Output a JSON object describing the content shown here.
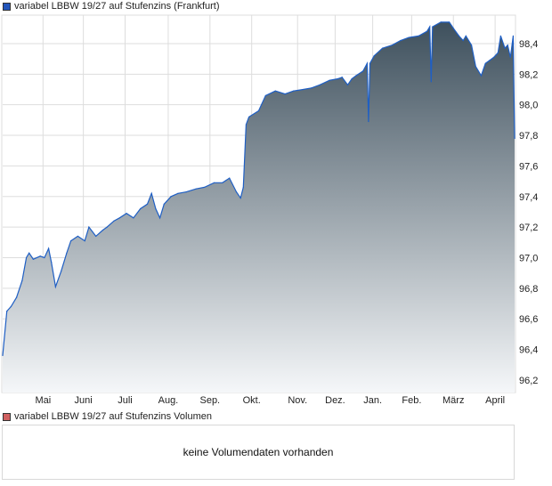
{
  "legend_price": "variabel LBBW 19/27 auf Stufenzins (Frankfurt)",
  "legend_volume": "variabel LBBW 19/27 auf Stufenzins Volumen",
  "volume_message": "keine Volumendaten vorhanden",
  "colors": {
    "line": "#1f5fc4",
    "fill_top": "#3e505d",
    "fill_bottom": "#f5f7f9",
    "grid": "#dddddd",
    "price_swatch": "#2255bb",
    "volume_swatch": "#d06060"
  },
  "chart_data": {
    "type": "area",
    "title": "variabel LBBW 19/27 auf Stufenzins (Frankfurt)",
    "xlabel": "",
    "ylabel": "",
    "xlim": [
      0,
      368
    ],
    "ylim": [
      96.118,
      98.586
    ],
    "grid": true,
    "legend": "top-left",
    "x_ticks": [
      {
        "day": 29,
        "label": "Mai"
      },
      {
        "day": 58,
        "label": "Juni"
      },
      {
        "day": 88,
        "label": "Juli"
      },
      {
        "day": 119,
        "label": "Aug."
      },
      {
        "day": 149,
        "label": "Sep."
      },
      {
        "day": 179,
        "label": "Okt."
      },
      {
        "day": 212,
        "label": "Nov."
      },
      {
        "day": 239,
        "label": "Dez."
      },
      {
        "day": 266,
        "label": "Jan."
      },
      {
        "day": 294,
        "label": "Feb."
      },
      {
        "day": 324,
        "label": "März"
      },
      {
        "day": 354,
        "label": "April"
      }
    ],
    "y_ticks": [
      {
        "value": 96.2,
        "label": "96,2"
      },
      {
        "value": 96.4,
        "label": "96,4"
      },
      {
        "value": 96.6,
        "label": "96,6"
      },
      {
        "value": 96.8,
        "label": "96,8"
      },
      {
        "value": 97.0,
        "label": "97,0"
      },
      {
        "value": 97.2,
        "label": "97,2"
      },
      {
        "value": 97.4,
        "label": "97,4"
      },
      {
        "value": 97.6,
        "label": "97,6"
      },
      {
        "value": 97.8,
        "label": "97,8"
      },
      {
        "value": 98.0,
        "label": "98,0"
      },
      {
        "value": 98.2,
        "label": "98,2"
      },
      {
        "value": 98.4,
        "label": "98,4"
      }
    ],
    "series": [
      {
        "name": "variabel LBBW 19/27 auf Stufenzins (Frankfurt)",
        "x": [
          0,
          3,
          6,
          10,
          14,
          17,
          19,
          22,
          27,
          30,
          33,
          35,
          38,
          42,
          46,
          49,
          54,
          59,
          62,
          67,
          72,
          75,
          80,
          84,
          89,
          94,
          99,
          104,
          107,
          110,
          113,
          116,
          121,
          126,
          132,
          139,
          145,
          152,
          158,
          163,
          168,
          171,
          173,
          175,
          177,
          184,
          189,
          196,
          203,
          209,
          216,
          222,
          228,
          235,
          241,
          244,
          248,
          251,
          254,
          259,
          262,
          263,
          264,
          267,
          273,
          280,
          286,
          292,
          299,
          305,
          307,
          308,
          309,
          315,
          321,
          324,
          328,
          331,
          333,
          337,
          340,
          344,
          347,
          350,
          353,
          356,
          358,
          361,
          363,
          365,
          367,
          368
        ],
        "values": [
          96.36,
          96.65,
          96.68,
          96.74,
          96.85,
          97.0,
          97.03,
          96.99,
          97.01,
          97.0,
          97.06,
          96.97,
          96.81,
          96.91,
          97.03,
          97.11,
          97.14,
          97.11,
          97.2,
          97.14,
          97.18,
          97.2,
          97.24,
          97.26,
          97.29,
          97.26,
          97.32,
          97.35,
          97.42,
          97.32,
          97.26,
          97.35,
          97.4,
          97.42,
          97.43,
          97.45,
          97.46,
          97.49,
          97.49,
          97.52,
          97.43,
          97.39,
          97.46,
          97.87,
          97.92,
          97.96,
          98.06,
          98.09,
          98.07,
          98.09,
          98.1,
          98.11,
          98.13,
          98.16,
          98.17,
          98.18,
          98.13,
          98.17,
          98.19,
          98.22,
          98.27,
          97.89,
          98.27,
          98.32,
          98.37,
          98.39,
          98.42,
          98.44,
          98.45,
          98.48,
          98.51,
          98.15,
          98.51,
          98.54,
          98.54,
          98.5,
          98.45,
          98.42,
          98.45,
          98.39,
          98.25,
          98.19,
          98.27,
          98.29,
          98.31,
          98.34,
          98.45,
          98.37,
          98.39,
          98.31,
          98.45,
          97.78
        ]
      }
    ]
  }
}
